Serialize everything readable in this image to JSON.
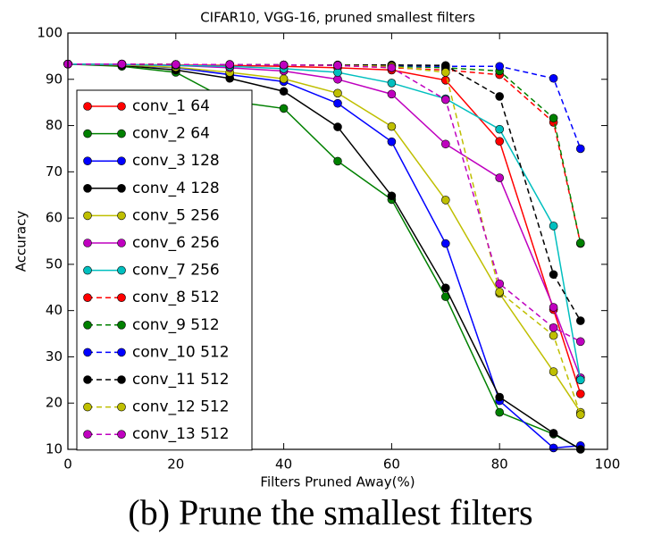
{
  "chart_data": {
    "type": "line",
    "title": "CIFAR10, VGG-16, pruned smallest filters",
    "x_label": "Filters Pruned Away(%)",
    "y_label": "Accuracy",
    "caption": "(b) Prune the smallest filters",
    "x": [
      0,
      10,
      20,
      30,
      40,
      50,
      60,
      70,
      80,
      90,
      95
    ],
    "xlim": [
      0,
      100
    ],
    "xticks": [
      0,
      20,
      40,
      60,
      80,
      100
    ],
    "ylim": [
      10,
      100
    ],
    "yticks": [
      10,
      20,
      30,
      40,
      50,
      60,
      70,
      80,
      90,
      100
    ],
    "legend": "upper left",
    "series": [
      {
        "name": "conv_1 64",
        "color": "#ff0000",
        "dashed": false,
        "values": [
          93.3,
          93.2,
          93.1,
          93.0,
          92.8,
          92.5,
          92.0,
          89.8,
          76.6,
          40.2,
          22.0
        ]
      },
      {
        "name": "conv_2 64",
        "color": "#008000",
        "dashed": false,
        "values": [
          93.3,
          92.8,
          91.5,
          85.3,
          83.7,
          72.3,
          64.0,
          43.0,
          18.0,
          13.3,
          10.1
        ]
      },
      {
        "name": "conv_3 128",
        "color": "#0000ff",
        "dashed": false,
        "values": [
          93.3,
          93.1,
          92.5,
          91.0,
          89.5,
          84.8,
          76.5,
          54.5,
          20.5,
          10.3,
          10.8
        ]
      },
      {
        "name": "conv_4 128",
        "color": "#000000",
        "dashed": false,
        "values": [
          93.3,
          93.0,
          92.0,
          90.2,
          87.4,
          79.7,
          64.8,
          44.9,
          21.3,
          13.5,
          10.0
        ]
      },
      {
        "name": "conv_5 256",
        "color": "#bfbf00",
        "dashed": false,
        "values": [
          93.3,
          93.1,
          92.6,
          91.5,
          90.1,
          87.0,
          79.8,
          63.9,
          43.7,
          26.8,
          18.0
        ]
      },
      {
        "name": "conv_6 256",
        "color": "#bf00bf",
        "dashed": false,
        "values": [
          93.3,
          93.2,
          93.0,
          92.5,
          91.8,
          90.0,
          86.8,
          76.0,
          68.7,
          40.7,
          25.5
        ]
      },
      {
        "name": "conv_7 256",
        "color": "#00bfbf",
        "dashed": false,
        "values": [
          93.3,
          93.2,
          93.0,
          92.8,
          92.3,
          91.5,
          89.2,
          85.8,
          79.2,
          58.3,
          25.0
        ]
      },
      {
        "name": "conv_8 512",
        "color": "#ff0000",
        "dashed": true,
        "values": [
          93.3,
          93.3,
          93.2,
          93.2,
          93.1,
          93.0,
          92.5,
          92.0,
          91.0,
          80.7,
          54.5
        ]
      },
      {
        "name": "conv_9 512",
        "color": "#008000",
        "dashed": true,
        "values": [
          93.3,
          93.3,
          93.2,
          93.2,
          93.1,
          93.0,
          92.8,
          92.5,
          91.8,
          81.6,
          54.6
        ]
      },
      {
        "name": "conv_10 512",
        "color": "#0000ff",
        "dashed": true,
        "values": [
          93.3,
          93.3,
          93.2,
          93.2,
          93.1,
          93.1,
          93.0,
          92.8,
          92.8,
          90.2,
          75.0
        ]
      },
      {
        "name": "conv_11 512",
        "color": "#000000",
        "dashed": true,
        "values": [
          93.3,
          93.3,
          93.2,
          93.2,
          93.1,
          93.1,
          93.1,
          93.0,
          86.3,
          47.8,
          37.8
        ]
      },
      {
        "name": "conv_12 512",
        "color": "#bfbf00",
        "dashed": true,
        "values": [
          93.3,
          93.3,
          93.2,
          93.2,
          93.1,
          93.0,
          92.8,
          91.5,
          44.0,
          34.6,
          17.5
        ]
      },
      {
        "name": "conv_13 512",
        "color": "#bf00bf",
        "dashed": true,
        "values": [
          93.3,
          93.3,
          93.2,
          93.2,
          93.1,
          93.0,
          92.5,
          85.6,
          45.8,
          36.3,
          33.3
        ]
      }
    ]
  }
}
